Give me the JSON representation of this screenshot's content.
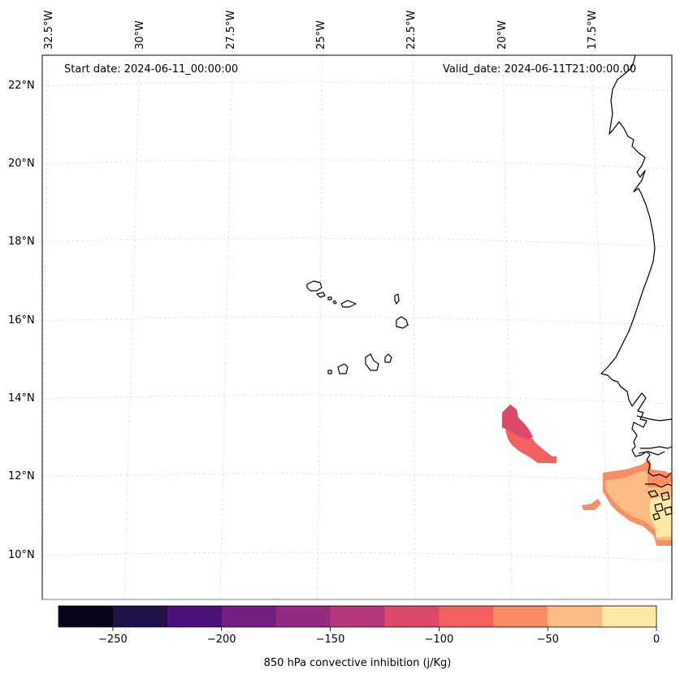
{
  "header": {
    "start_date": "Start date: 2024-06-11_00:00:00",
    "valid_date": "Valid_date: 2024-06-11T21:00:00.00"
  },
  "map": {
    "longitude_labels": [
      "32.5°W",
      "30°W",
      "27.5°W",
      "25°W",
      "22.5°W",
      "20°W",
      "17.5°W"
    ],
    "latitude_labels": [
      "22°N",
      "20°N",
      "18°N",
      "16°N",
      "14°N",
      "12°N",
      "10°N"
    ],
    "gridline_color": "#dddddd",
    "coastline_color": "#000000"
  },
  "colorbar": {
    "label": "850 hPa convective inhibition (j/Kg)",
    "tick_labels": [
      "−250",
      "−200",
      "−150",
      "−100",
      "−50",
      "0"
    ],
    "bins": [
      {
        "from": -275,
        "to": -250,
        "color": "#07051b"
      },
      {
        "from": -250,
        "to": -225,
        "color": "#1f1147"
      },
      {
        "from": -225,
        "to": -200,
        "color": "#4a1078"
      },
      {
        "from": -200,
        "to": -175,
        "color": "#721f81"
      },
      {
        "from": -175,
        "to": -150,
        "color": "#932b80"
      },
      {
        "from": -150,
        "to": -125,
        "color": "#b7377a"
      },
      {
        "from": -125,
        "to": -100,
        "color": "#dd4968"
      },
      {
        "from": -100,
        "to": -75,
        "color": "#f2615d"
      },
      {
        "from": -75,
        "to": -50,
        "color": "#fb8d64"
      },
      {
        "from": -50,
        "to": -25,
        "color": "#fdbc83"
      },
      {
        "from": -25,
        "to": 0,
        "color": "#fde8a6"
      }
    ]
  }
}
